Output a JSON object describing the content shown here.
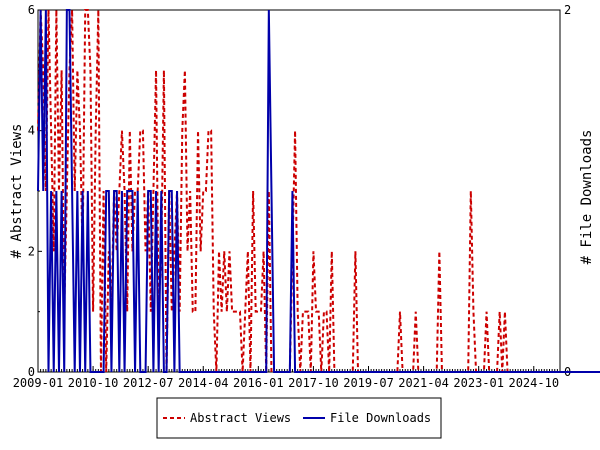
{
  "chart_data": {
    "type": "line",
    "title": "",
    "xlabel": "",
    "ylabel": "# Abstract Views",
    "y2label": "# File Downloads",
    "ylim": [
      0,
      6
    ],
    "y2lim": [
      0,
      2
    ],
    "yticks": [
      0,
      2,
      4,
      6
    ],
    "y2ticks": [
      0,
      2
    ],
    "grid": false,
    "legend_placement": "bottom-center",
    "x_start": "2009-01",
    "x_end": "2025-08",
    "xtick_labels": [
      "2009-01",
      "2010-10",
      "2012-07",
      "2014-04",
      "2016-01",
      "2017-10",
      "2019-07",
      "2021-04",
      "2023-01",
      "2024-10"
    ],
    "series": [
      {
        "name": "Abstract Views",
        "axis": "left",
        "color": "#cc0000",
        "style": "dashed",
        "values": [
          4,
          6,
          5,
          3,
          6,
          4,
          2,
          6,
          3,
          5,
          1,
          3,
          5,
          6,
          3,
          5,
          4,
          2,
          6,
          6,
          5,
          1,
          4,
          6,
          0,
          3,
          0,
          2,
          1,
          3,
          2,
          3,
          4,
          3,
          1,
          4,
          2,
          3,
          3,
          4,
          4,
          2,
          3,
          1,
          3,
          5,
          1,
          2,
          5,
          0,
          3,
          1,
          2,
          3,
          1,
          4,
          5,
          2,
          3,
          1,
          1,
          4,
          2,
          3,
          3,
          4,
          4,
          1,
          0,
          2,
          1,
          2,
          1,
          2,
          1,
          1,
          1,
          1,
          0,
          1,
          2,
          0,
          3,
          1,
          1,
          1,
          2,
          0,
          3,
          0,
          0,
          0,
          0,
          0,
          0,
          0,
          0,
          2,
          4,
          1,
          0,
          1,
          1,
          1,
          0,
          2,
          1,
          1,
          0,
          1,
          1,
          0,
          2,
          0,
          0,
          0,
          0,
          0,
          0,
          0,
          0,
          2,
          0,
          0,
          0,
          0,
          0,
          0,
          0,
          0,
          0,
          0,
          0,
          0,
          0,
          0,
          0,
          0,
          1,
          0,
          0,
          0,
          0,
          0,
          1,
          0,
          0,
          0,
          0,
          0,
          0,
          0,
          0,
          2,
          0,
          0,
          0,
          0,
          0,
          0,
          0,
          0,
          0,
          0,
          0,
          3,
          1,
          0,
          0,
          0,
          0,
          1,
          0,
          0,
          0,
          0,
          1,
          0,
          1,
          0,
          0,
          0,
          0,
          0,
          0,
          0,
          0,
          0,
          0,
          0,
          0,
          0,
          0,
          0,
          0,
          0,
          0,
          0,
          0,
          0,
          0,
          0,
          0,
          0,
          0,
          0,
          0,
          0,
          0,
          0,
          0,
          0,
          0,
          0,
          0,
          0,
          0,
          0,
          0,
          0,
          0,
          0,
          1,
          0,
          0,
          0,
          0,
          0,
          0,
          0,
          0,
          0
        ]
      },
      {
        "name": "File Downloads",
        "axis": "right",
        "color": "#0000aa",
        "style": "solid",
        "values": [
          1,
          2,
          1,
          2,
          0,
          1,
          0,
          1,
          0,
          1,
          0,
          2,
          2,
          1,
          0,
          1,
          0,
          1,
          0,
          1,
          0,
          0,
          0,
          0,
          0,
          0,
          1,
          1,
          0,
          1,
          1,
          0,
          1,
          0,
          1,
          1,
          1,
          0,
          1,
          0,
          0,
          0,
          1,
          1,
          0,
          1,
          0,
          1,
          0,
          0,
          1,
          1,
          0,
          1,
          0,
          0,
          0,
          0,
          0,
          0,
          0,
          0,
          0,
          0,
          0,
          0,
          0,
          0,
          0,
          0,
          0,
          0,
          0,
          0,
          0,
          0,
          0,
          0,
          0,
          0,
          0,
          0,
          0,
          0,
          0,
          0,
          0,
          0,
          2,
          1,
          0,
          0,
          0,
          0,
          0,
          0,
          0,
          1,
          0,
          0,
          0,
          0,
          0,
          0,
          0,
          0,
          0,
          0,
          0,
          0,
          0,
          0,
          0,
          0,
          0,
          0,
          0,
          0,
          0,
          0,
          0,
          0,
          0,
          0,
          0,
          0,
          0,
          0,
          0,
          0,
          0,
          0,
          0,
          0,
          0,
          0,
          0,
          0,
          0,
          0,
          0,
          0,
          0,
          0,
          0,
          0,
          0,
          0,
          0,
          0,
          0,
          0,
          0,
          0,
          0,
          0,
          0,
          0,
          0,
          0,
          0,
          0,
          0,
          0,
          0,
          0,
          0,
          0,
          0,
          0,
          0,
          0,
          0,
          0,
          0,
          0,
          0,
          0,
          0,
          0,
          0,
          0,
          0,
          0,
          0,
          0,
          0,
          0,
          0,
          0,
          0,
          0,
          0,
          0,
          0,
          0,
          0,
          0,
          0,
          0,
          0,
          0,
          0,
          0,
          0,
          0,
          0,
          0,
          0,
          0,
          0,
          0,
          0,
          0,
          0,
          0,
          0,
          0,
          0,
          0,
          0,
          0,
          0,
          0,
          0,
          0,
          0,
          0,
          0,
          0,
          0,
          0,
          0,
          0,
          0
        ]
      }
    ]
  }
}
